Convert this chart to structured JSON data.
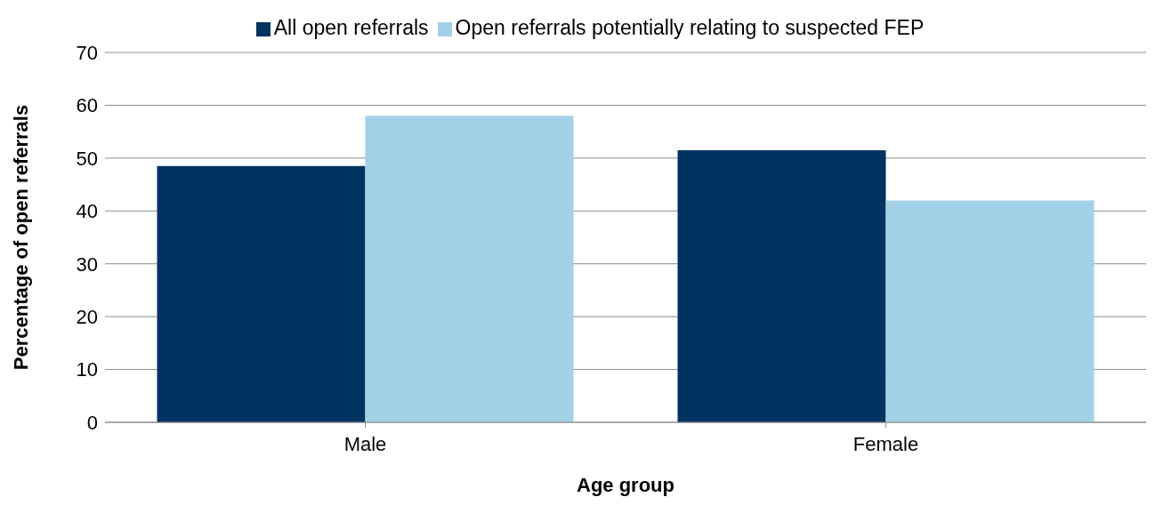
{
  "chart_data": {
    "type": "bar",
    "xlabel": "Age group",
    "ylabel": "Percentage of open referrals",
    "categories": [
      "Male",
      "Female"
    ],
    "series": [
      {
        "name": "All open referrals",
        "color": "#003360",
        "values": [
          48.5,
          51.5
        ]
      },
      {
        "name": "Open referrals potentially relating to suspected FEP",
        "color": "#a2d0e6",
        "values": [
          58,
          42
        ]
      }
    ],
    "ylim": [
      0,
      70
    ],
    "yticks": [
      0,
      10,
      20,
      30,
      40,
      50,
      60,
      70
    ],
    "grid": "y",
    "legend": "top"
  }
}
